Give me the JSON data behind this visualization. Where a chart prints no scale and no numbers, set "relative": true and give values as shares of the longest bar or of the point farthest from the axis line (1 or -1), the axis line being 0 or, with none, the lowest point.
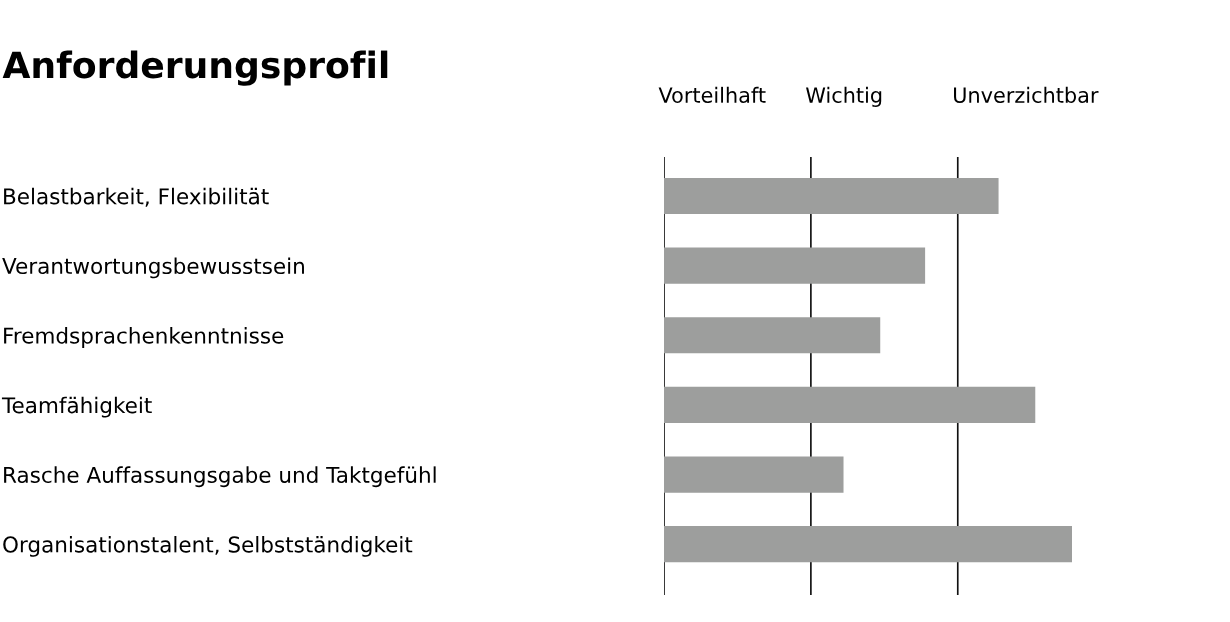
{
  "chart_data": {
    "type": "bar",
    "orientation": "horizontal",
    "title": "Anforderungsprofil",
    "relative": true,
    "categories": [
      "Belastbarkeit, Flexibilität",
      "Verantwortungsbewusstsein",
      "Fremdsprachenkenntnisse",
      "Teamfähigkeit",
      "Rasche Auffassungsgabe und Taktgefühl",
      "Organisationstalent, Selbstständigkeit"
    ],
    "values": [
      0.82,
      0.64,
      0.53,
      0.91,
      0.44,
      1.0
    ],
    "color": "#9d9e9d",
    "ref_lines": [
      {
        "axis": "x",
        "value": 0,
        "label": "Vorteilhaft",
        "color": "#111111"
      },
      {
        "axis": "x",
        "value": 0.36,
        "label": "Wichtig",
        "color": "#111111"
      },
      {
        "axis": "x",
        "value": 0.72,
        "label": "Unverzichtbar",
        "color": "#111111"
      }
    ],
    "grid": false,
    "legend": false
  }
}
